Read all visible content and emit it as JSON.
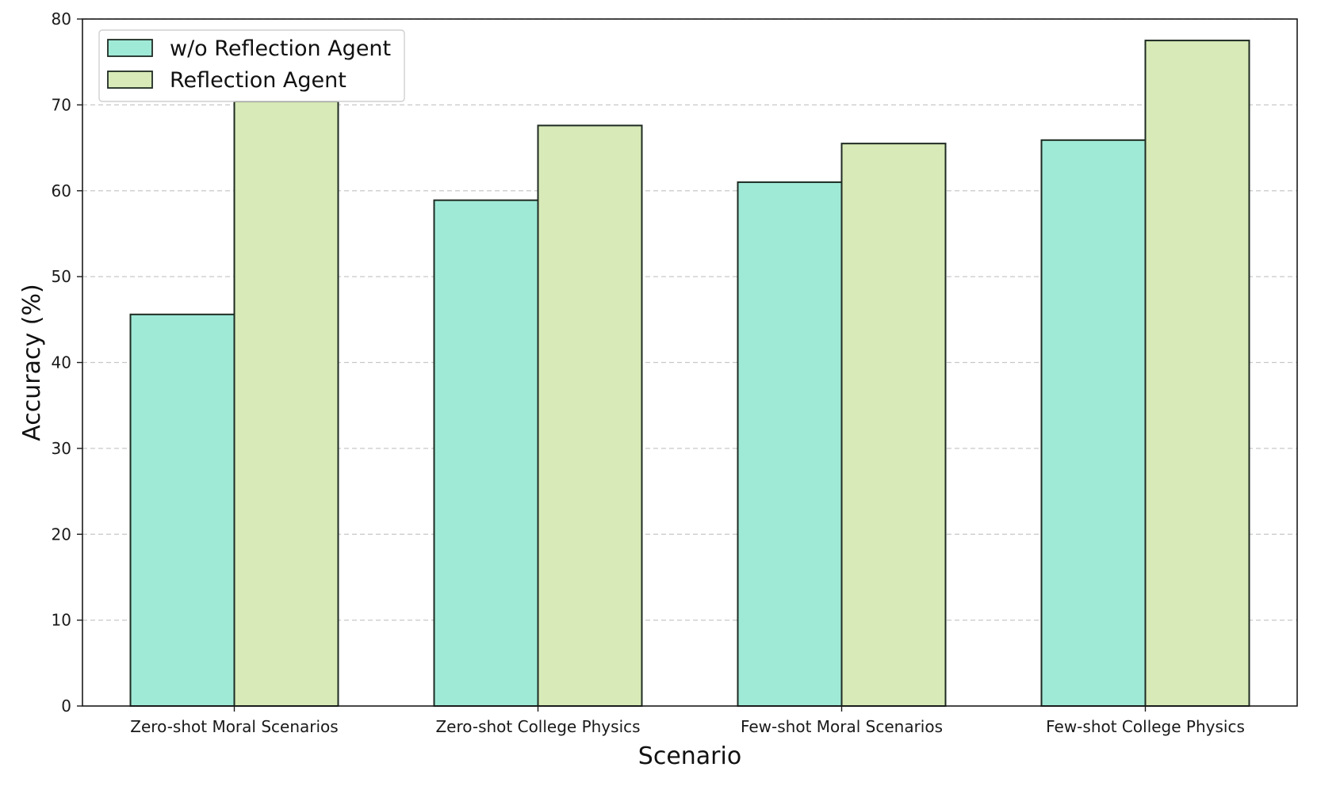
{
  "chart_data": {
    "type": "bar",
    "categories": [
      "Zero-shot Moral Scenarios",
      "Zero-shot College Physics",
      "Few-shot Moral Scenarios",
      "Few-shot College Physics"
    ],
    "series": [
      {
        "name": "w/o Reflection Agent",
        "values": [
          45.6,
          58.9,
          61.0,
          65.9
        ],
        "color": "#9fe9d7"
      },
      {
        "name": "Reflection Agent",
        "values": [
          70.4,
          67.6,
          65.5,
          77.5
        ],
        "color": "#d8eab7"
      }
    ],
    "title": "",
    "xlabel": "Scenario",
    "ylabel": "Accuracy (%)",
    "ylim": [
      0,
      80
    ],
    "yticks": [
      0,
      10,
      20,
      30,
      40,
      50,
      60,
      70,
      80
    ],
    "grid": "horizontal dashed",
    "legend_position": "top-left",
    "edge_color": "#1e2b22"
  }
}
